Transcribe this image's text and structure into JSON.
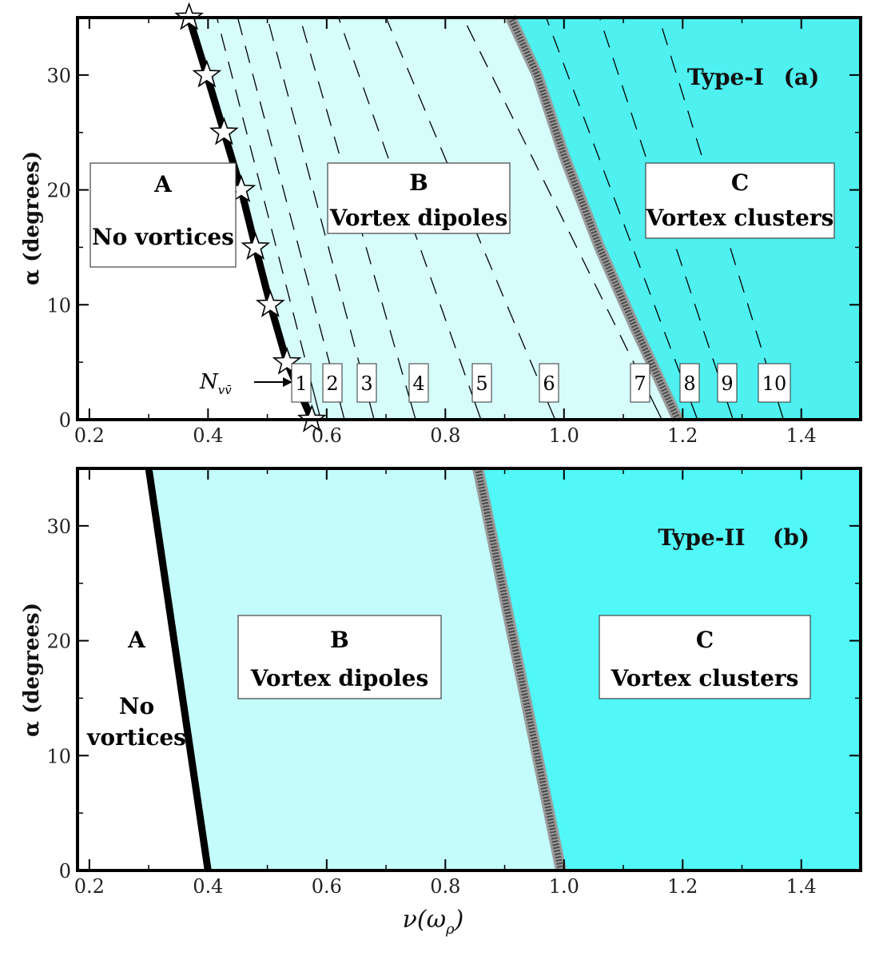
{
  "chart_data": [
    {
      "type": "area",
      "panel": "Type-I",
      "title": "Type-I",
      "panel_tag": "(a)",
      "xlabel": "",
      "ylabel": "α (degrees)",
      "xlim": [
        0.18,
        1.5
      ],
      "ylim": [
        0,
        35
      ],
      "xticks": [
        0.2,
        0.4,
        0.6,
        0.8,
        1.0,
        1.2,
        1.4
      ],
      "xtick_labels": [
        "0.2",
        "0.4",
        "0.6",
        "0.8",
        "1.0",
        "1.2",
        "1.4"
      ],
      "yticks": [
        0,
        10,
        20,
        30
      ],
      "ytick_labels": [
        "0",
        "10",
        "20",
        "30"
      ],
      "regions": [
        {
          "id": "A",
          "letter": "A",
          "name": "No vortices",
          "color": "#ffffff"
        },
        {
          "id": "B",
          "letter": "B",
          "name": "Vortex dipoles",
          "color": "#d6fcfc"
        },
        {
          "id": "C",
          "letter": "C",
          "name": "Vortex clusters",
          "color": "#4ef0f0"
        }
      ],
      "boundary_AB": {
        "x": [
          0.575,
          0.533,
          0.505,
          0.48,
          0.456,
          0.427,
          0.398,
          0.368
        ],
        "y": [
          0,
          5,
          10,
          15,
          20,
          25,
          30,
          35
        ]
      },
      "stars": {
        "x": [
          0.575,
          0.533,
          0.505,
          0.48,
          0.456,
          0.427,
          0.398,
          0.368
        ],
        "y": [
          0,
          5,
          10,
          15,
          20,
          25,
          30,
          35
        ]
      },
      "boundary_BC": {
        "x": [
          1.192,
          1.12,
          1.06,
          1.0,
          0.955,
          0.91
        ],
        "y": [
          0,
          8,
          15,
          23,
          30,
          35
        ]
      },
      "contour_label_prefix": "N",
      "contour_label_sub": "vv̄",
      "contours": [
        {
          "label": "1",
          "x0": 0.59,
          "x1": 0.415,
          "ylow": 3
        },
        {
          "label": "2",
          "x0": 0.63,
          "x1": 0.45,
          "ylow": 2
        },
        {
          "label": "3",
          "x0": 0.68,
          "x1": 0.5,
          "ylow": 1.5
        },
        {
          "label": "4",
          "x0": 0.75,
          "x1": 0.555,
          "ylow": 1.5
        },
        {
          "label": "5",
          "x0": 0.86,
          "x1": 0.62,
          "ylow": 1.5
        },
        {
          "label": "6",
          "x0": 0.985,
          "x1": 0.7,
          "ylow": 1.5
        },
        {
          "label": "7",
          "x0": 1.165,
          "x1": 0.83,
          "ylow": 1.5
        },
        {
          "label": "8",
          "x0": 1.225,
          "x1": 0.97,
          "ylow": 1.5
        },
        {
          "label": "9",
          "x0": 1.285,
          "x1": 1.06,
          "ylow": 1.5
        },
        {
          "label": "10",
          "x0": 1.37,
          "x1": 1.16,
          "ylow": 1.5
        }
      ]
    },
    {
      "type": "area",
      "panel": "Type-II",
      "title": "Type-II",
      "panel_tag": "(b)",
      "xlabel": "ν(ω",
      "xlabel_sub": "ρ",
      "xlabel_close": ")",
      "ylabel": "α (degrees)",
      "xlim": [
        0.18,
        1.5
      ],
      "ylim": [
        0,
        35
      ],
      "xticks": [
        0.2,
        0.4,
        0.6,
        0.8,
        1.0,
        1.2,
        1.4
      ],
      "xtick_labels": [
        "0.2",
        "0.4",
        "0.6",
        "0.8",
        "1.0",
        "1.2",
        "1.4"
      ],
      "yticks": [
        0,
        10,
        20,
        30
      ],
      "ytick_labels": [
        "0",
        "10",
        "20",
        "30"
      ],
      "regions": [
        {
          "id": "A",
          "letter": "A",
          "name_line1": "No",
          "name_line2": "vortices",
          "color": "#ffffff"
        },
        {
          "id": "B",
          "letter": "B",
          "name": "Vortex dipoles",
          "color": "#c4fbfb"
        },
        {
          "id": "C",
          "letter": "C",
          "name": "Vortex clusters",
          "color": "#52f8f8"
        }
      ],
      "boundary_AB": {
        "x": [
          0.4,
          0.3
        ],
        "y": [
          0,
          35
        ]
      },
      "boundary_BC": {
        "x": [
          0.995,
          0.855
        ],
        "y": [
          0,
          35
        ]
      }
    }
  ]
}
